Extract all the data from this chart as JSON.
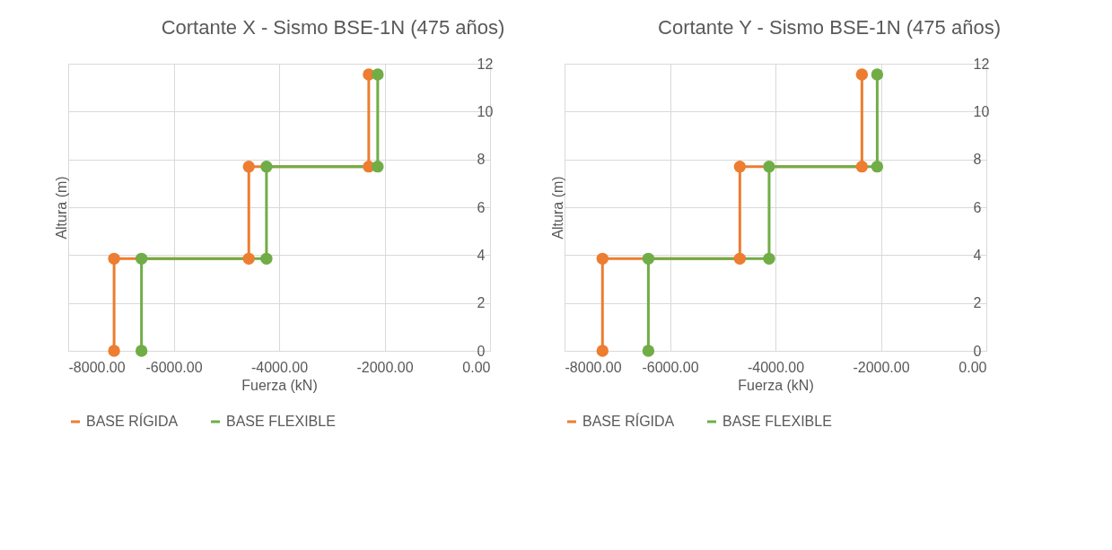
{
  "chart_data": [
    {
      "type": "line",
      "title": "Cortante X - Sismo BSE-1N (475 años)",
      "xlabel": "Fuerza (kN)",
      "ylabel": "Altura (m)",
      "marker": "circle",
      "grid": true,
      "legend": "bottom",
      "xlim": [
        -8000,
        0
      ],
      "xticks": [
        {
          "value": -8000,
          "label": "-8000.00"
        },
        {
          "value": -6000,
          "label": "-6000.00"
        },
        {
          "value": -4000,
          "label": "-4000.00"
        },
        {
          "value": -2000,
          "label": "-2000.00"
        },
        {
          "value": 0,
          "label": "0.00"
        }
      ],
      "ylim": [
        0,
        12
      ],
      "yticks": [
        0,
        2,
        4,
        6,
        8,
        10,
        12
      ],
      "series": [
        {
          "name": "BASE RÍGIDA",
          "color": "#ed7d31",
          "x": [
            -7130,
            -7130,
            -4575,
            -4575,
            -2300,
            -2300
          ],
          "values": [
            0,
            3.85,
            3.85,
            7.7,
            7.7,
            11.55
          ]
        },
        {
          "name": "BASE FLEXIBLE",
          "color": "#70ad47",
          "x": [
            -6610,
            -6610,
            -4240,
            -4240,
            -2130,
            -2130
          ],
          "values": [
            0,
            3.85,
            3.85,
            7.7,
            7.7,
            11.55
          ]
        }
      ]
    },
    {
      "type": "line",
      "title": "Cortante Y - Sismo BSE-1N (475 años)",
      "xlabel": "Fuerza (kN)",
      "ylabel": "Altura (m)",
      "marker": "circle",
      "grid": true,
      "legend": "bottom",
      "xlim": [
        -8000,
        0
      ],
      "xticks": [
        {
          "value": -8000,
          "label": "-8000.00"
        },
        {
          "value": -6000,
          "label": "-6000.00"
        },
        {
          "value": -4000,
          "label": "-4000.00"
        },
        {
          "value": -2000,
          "label": "-2000.00"
        },
        {
          "value": 0,
          "label": "0.00"
        }
      ],
      "ylim": [
        0,
        12
      ],
      "yticks": [
        0,
        2,
        4,
        6,
        8,
        10,
        12
      ],
      "series": [
        {
          "name": "BASE RÍGIDA",
          "color": "#ed7d31",
          "x": [
            -7280,
            -7280,
            -4675,
            -4675,
            -2360,
            -2360
          ],
          "values": [
            0,
            3.85,
            3.85,
            7.7,
            7.7,
            11.55
          ]
        },
        {
          "name": "BASE FLEXIBLE",
          "color": "#70ad47",
          "x": [
            -6410,
            -6410,
            -4120,
            -4120,
            -2070,
            -2070
          ],
          "values": [
            0,
            3.85,
            3.85,
            7.7,
            7.7,
            11.55
          ]
        }
      ]
    }
  ]
}
